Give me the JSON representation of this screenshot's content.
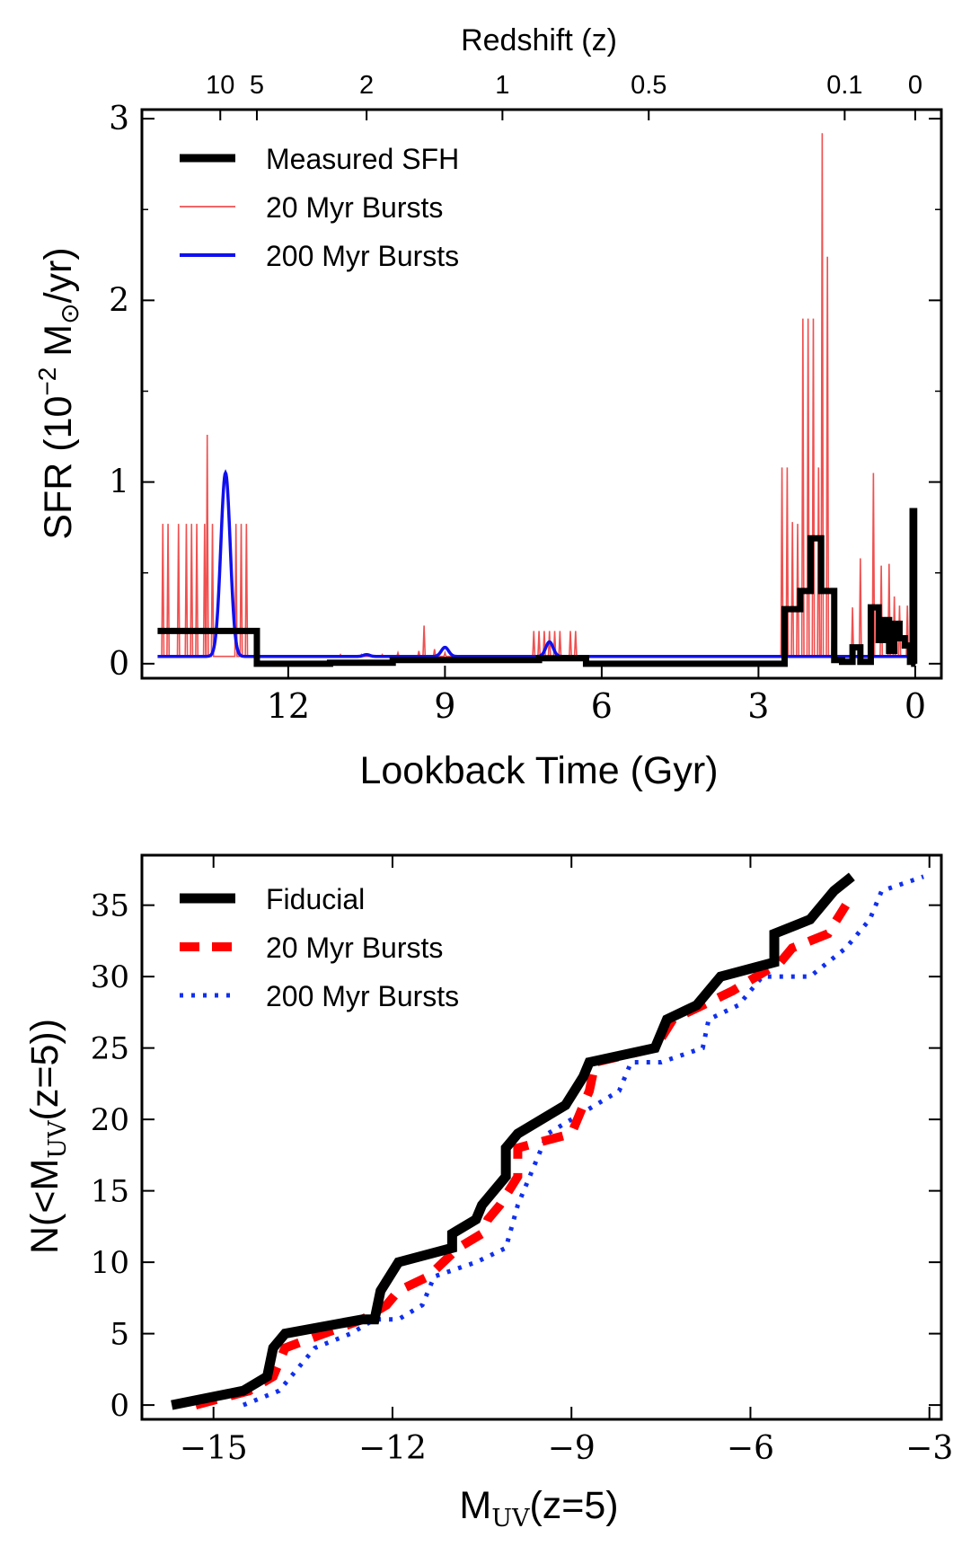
{
  "chart_data": [
    {
      "type": "line",
      "title": "",
      "xlabel": "Lookback Time (Gyr)",
      "ylabel_main": "SFR (10",
      "ylabel_sup": "−2",
      "ylabel_unit": " M",
      "ylabel_sub": "⊙",
      "ylabel_tail": "/yr)",
      "top_axis_label": "Redshift (z)",
      "xlim": [
        14.8,
        -0.5
      ],
      "ylim": [
        -0.08,
        3.05
      ],
      "x_ticks": [
        12,
        9,
        6,
        3,
        0
      ],
      "x_tick_labels": [
        "12",
        "9",
        "6",
        "3",
        "0"
      ],
      "y_ticks": [
        0,
        1,
        2,
        3
      ],
      "y_tick_labels": [
        "0",
        "1",
        "2",
        "3"
      ],
      "redshift_ticks": [
        {
          "label": "10",
          "lookback": 13.3
        },
        {
          "label": "5",
          "lookback": 12.6
        },
        {
          "label": "2",
          "lookback": 10.5
        },
        {
          "label": "1",
          "lookback": 7.9
        },
        {
          "label": "0.5",
          "lookback": 5.1
        },
        {
          "label": "0.1",
          "lookback": 1.35
        },
        {
          "label": "0",
          "lookback": 0.0
        }
      ],
      "legend": [
        "Measured SFH",
        "20 Myr Bursts",
        "200 Myr Bursts"
      ],
      "legend_position": "top-left",
      "series": [
        {
          "name": "Measured SFH",
          "color": "#000000",
          "style": "step",
          "x": [
            14.5,
            12.6,
            12.6,
            11.2,
            11.2,
            10.0,
            10.0,
            7.2,
            7.2,
            6.3,
            6.3,
            2.5,
            2.5,
            2.2,
            2.2,
            2.0,
            2.0,
            1.8,
            1.8,
            1.55,
            1.55,
            1.4,
            1.4,
            1.2,
            1.2,
            1.05,
            1.05,
            0.85,
            0.85,
            0.7,
            0.7,
            0.6,
            0.6,
            0.5,
            0.5,
            0.4,
            0.4,
            0.3,
            0.3,
            0.2,
            0.2,
            0.1,
            0.1,
            0.05,
            0.05,
            0.02,
            0.02,
            0.0
          ],
          "y": [
            0.18,
            0.18,
            0.0,
            0.0,
            0.005,
            0.005,
            0.02,
            0.02,
            0.03,
            0.03,
            0.0,
            0.0,
            0.3,
            0.3,
            0.4,
            0.4,
            0.69,
            0.69,
            0.4,
            0.4,
            0.02,
            0.02,
            0.01,
            0.01,
            0.09,
            0.09,
            0.01,
            0.01,
            0.31,
            0.31,
            0.13,
            0.13,
            0.24,
            0.24,
            0.07,
            0.07,
            0.22,
            0.22,
            0.14,
            0.14,
            0.1,
            0.1,
            0.01,
            0.01,
            0.84,
            0.84,
            0.0,
            0.0
          ]
        },
        {
          "name": "20 Myr Bursts",
          "color": "#f05050",
          "style": "spikes",
          "baseline": 0.04,
          "spikes": [
            {
              "x": 14.4,
              "y": 0.77
            },
            {
              "x": 14.3,
              "y": 0.77
            },
            {
              "x": 14.1,
              "y": 0.77
            },
            {
              "x": 13.95,
              "y": 0.77
            },
            {
              "x": 13.85,
              "y": 0.77
            },
            {
              "x": 13.75,
              "y": 0.77
            },
            {
              "x": 13.6,
              "y": 0.77
            },
            {
              "x": 13.55,
              "y": 1.26
            },
            {
              "x": 13.45,
              "y": 0.77
            },
            {
              "x": 13.0,
              "y": 0.77
            },
            {
              "x": 12.9,
              "y": 0.77
            },
            {
              "x": 12.8,
              "y": 0.77
            },
            {
              "x": 11.0,
              "y": 0.05
            },
            {
              "x": 10.6,
              "y": 0.05
            },
            {
              "x": 10.2,
              "y": 0.05
            },
            {
              "x": 9.9,
              "y": 0.06
            },
            {
              "x": 9.5,
              "y": 0.07
            },
            {
              "x": 9.4,
              "y": 0.21
            },
            {
              "x": 9.2,
              "y": 0.08
            },
            {
              "x": 9.0,
              "y": 0.06
            },
            {
              "x": 7.3,
              "y": 0.18
            },
            {
              "x": 7.2,
              "y": 0.18
            },
            {
              "x": 7.1,
              "y": 0.18
            },
            {
              "x": 7.0,
              "y": 0.18
            },
            {
              "x": 6.9,
              "y": 0.18
            },
            {
              "x": 6.8,
              "y": 0.18
            },
            {
              "x": 6.6,
              "y": 0.18
            },
            {
              "x": 6.5,
              "y": 0.18
            },
            {
              "x": 2.55,
              "y": 1.08
            },
            {
              "x": 2.45,
              "y": 1.08
            },
            {
              "x": 2.35,
              "y": 0.78
            },
            {
              "x": 2.25,
              "y": 0.77
            },
            {
              "x": 2.15,
              "y": 1.9
            },
            {
              "x": 2.05,
              "y": 1.9
            },
            {
              "x": 1.95,
              "y": 1.9
            },
            {
              "x": 1.85,
              "y": 1.08
            },
            {
              "x": 1.78,
              "y": 2.92
            },
            {
              "x": 1.68,
              "y": 2.24
            },
            {
              "x": 1.58,
              "y": 0.4
            },
            {
              "x": 1.2,
              "y": 0.31
            },
            {
              "x": 1.05,
              "y": 0.58
            },
            {
              "x": 0.8,
              "y": 1.05
            },
            {
              "x": 0.65,
              "y": 0.54
            },
            {
              "x": 0.5,
              "y": 0.55
            },
            {
              "x": 0.4,
              "y": 0.37
            },
            {
              "x": 0.3,
              "y": 0.32
            },
            {
              "x": 0.15,
              "y": 0.32
            },
            {
              "x": 0.05,
              "y": 0.35
            }
          ]
        },
        {
          "name": "200 Myr Bursts",
          "color": "#1010ee",
          "style": "gaussian",
          "x_start": 14.5,
          "x_end": 0.0,
          "baseline": 0.04,
          "peaks": [
            {
              "x": 13.2,
              "y": 1.05,
              "sigma": 0.09
            },
            {
              "x": 10.5,
              "y": 0.05,
              "sigma": 0.06
            },
            {
              "x": 9.0,
              "y": 0.09,
              "sigma": 0.07
            },
            {
              "x": 7.0,
              "y": 0.12,
              "sigma": 0.07
            }
          ]
        }
      ]
    },
    {
      "type": "line",
      "title": "",
      "xlabel_main": "M",
      "xlabel_sub": "UV",
      "xlabel_tail": "(z=5)",
      "ylabel_main": "N(<M",
      "ylabel_sub": "UV",
      "ylabel_tail": "(z=5))",
      "xlim": [
        -16.2,
        -2.8
      ],
      "ylim": [
        -1,
        38.5
      ],
      "x_ticks": [
        -15,
        -12,
        -9,
        -6,
        -3
      ],
      "x_tick_labels": [
        "−15",
        "−12",
        "−9",
        "−6",
        "−3"
      ],
      "y_ticks": [
        0,
        5,
        10,
        15,
        20,
        25,
        30,
        35
      ],
      "y_tick_labels": [
        "0",
        "5",
        "10",
        "15",
        "20",
        "25",
        "30",
        "35"
      ],
      "legend": [
        "Fiducial",
        "20 Myr Bursts",
        "200 Myr Bursts"
      ],
      "legend_position": "top-left",
      "series": [
        {
          "name": "Fiducial",
          "color": "#000000",
          "x": [
            -15.7,
            -14.5,
            -14.1,
            -14.0,
            -13.8,
            -12.5,
            -12.3,
            -12.2,
            -11.9,
            -11.0,
            -11.0,
            -10.6,
            -10.5,
            -10.3,
            -10.1,
            -10.1,
            -9.9,
            -9.1,
            -8.8,
            -8.7,
            -7.6,
            -7.4,
            -6.9,
            -6.5,
            -5.6,
            -5.6,
            -5.0,
            -4.6,
            -4.3
          ],
          "y": [
            0,
            1,
            2,
            4,
            5,
            6,
            6,
            8,
            10,
            11,
            12,
            13,
            14,
            15,
            16,
            18,
            19,
            21,
            23,
            24,
            25,
            27,
            28,
            30,
            31,
            33,
            34,
            36,
            37
          ]
        },
        {
          "name": "20 Myr Bursts",
          "color": "#ff0000",
          "x": [
            -15.3,
            -14.4,
            -14.0,
            -13.9,
            -13.8,
            -12.5,
            -12.1,
            -11.9,
            -11.4,
            -10.9,
            -10.5,
            -10.4,
            -10.2,
            -9.9,
            -9.9,
            -9.0,
            -8.9,
            -8.7,
            -8.6,
            -7.6,
            -7.3,
            -6.8,
            -6.3,
            -5.5,
            -5.3,
            -4.7,
            -4.4
          ],
          "y": [
            0,
            1,
            2,
            3,
            4,
            6,
            7,
            8,
            9,
            11,
            12,
            13,
            14,
            16,
            18,
            19,
            20,
            22,
            24,
            25,
            27,
            28,
            29,
            31,
            32,
            33,
            35
          ]
        },
        {
          "name": "200 Myr Bursts",
          "color": "#1030ee",
          "x": [
            -14.5,
            -13.9,
            -13.7,
            -13.3,
            -12.7,
            -12.3,
            -11.9,
            -11.5,
            -11.3,
            -10.6,
            -10.1,
            -9.9,
            -9.7,
            -9.4,
            -9.0,
            -8.2,
            -8.0,
            -7.5,
            -6.8,
            -6.7,
            -6.2,
            -5.8,
            -5.0,
            -4.4,
            -4.0,
            -3.8,
            -3.1
          ],
          "y": [
            0,
            1,
            2,
            4,
            5,
            6,
            6,
            7,
            9,
            10,
            11,
            14,
            16,
            19,
            20,
            22,
            24,
            24,
            25,
            27,
            28,
            30,
            30,
            32,
            34,
            36,
            37
          ]
        }
      ]
    }
  ]
}
